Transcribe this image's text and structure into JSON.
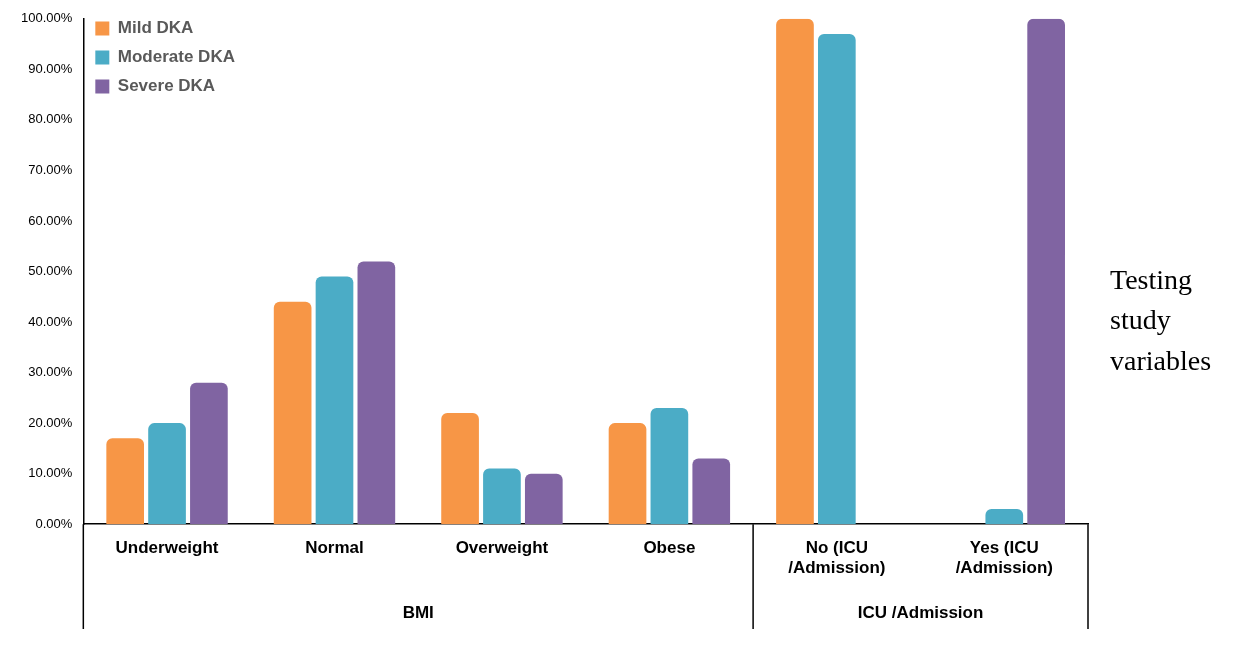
{
  "chart_data": {
    "type": "bar",
    "categories": [
      "Underweight",
      "Normal",
      "Overweight",
      "Obese",
      "No (ICU /Admission)",
      "Yes (ICU /Admission)"
    ],
    "series": [
      {
        "name": "Mild DKA",
        "color": "#f79646",
        "values": [
          17,
          44,
          22,
          20,
          100,
          0
        ]
      },
      {
        "name": "Moderate DKA",
        "color": "#4bacc6",
        "values": [
          20,
          49,
          11,
          23,
          97,
          3
        ]
      },
      {
        "name": "Severe DKA",
        "color": "#8064a2",
        "values": [
          28,
          52,
          10,
          13,
          0,
          100
        ]
      }
    ],
    "ylim": [
      0,
      100
    ],
    "yticks": [
      {
        "value": 0,
        "label": "0.00%"
      },
      {
        "value": 10,
        "label": "10.00%"
      },
      {
        "value": 20,
        "label": "20.00%"
      },
      {
        "value": 30,
        "label": "30.00%"
      },
      {
        "value": 40,
        "label": "40.00%"
      },
      {
        "value": 50,
        "label": "50.00%"
      },
      {
        "value": 60,
        "label": "60.00%"
      },
      {
        "value": 70,
        "label": "70.00%"
      },
      {
        "value": 80,
        "label": "80.00%"
      },
      {
        "value": 90,
        "label": "90.00%"
      },
      {
        "value": 100,
        "label": "100.00%"
      }
    ],
    "annotations": [
      "BMI",
      "ICU /Admission",
      "Testing study variables"
    ],
    "legend": "top left",
    "grid": false
  }
}
